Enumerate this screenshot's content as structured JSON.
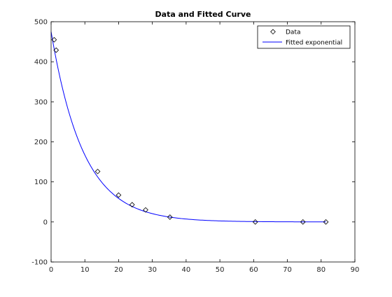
{
  "chart_data": {
    "type": "scatter",
    "title": "Data and Fitted Curve",
    "xlabel": "",
    "ylabel": "",
    "xlim": [
      0,
      90
    ],
    "ylim": [
      -100,
      500
    ],
    "x_ticks": [
      0,
      10,
      20,
      30,
      40,
      50,
      60,
      70,
      80,
      90
    ],
    "y_ticks": [
      -100,
      0,
      100,
      200,
      300,
      400,
      500
    ],
    "grid": false,
    "legend_position": "top-right",
    "series": [
      {
        "name": "Data",
        "kind": "markers",
        "marker": "diamond",
        "color": "#000000",
        "x": [
          0.9,
          1.5,
          13.8,
          20.0,
          24.0,
          28.0,
          35.2,
          60.5,
          74.6,
          81.4
        ],
        "y": [
          455,
          429,
          126,
          67,
          43,
          30,
          12,
          0,
          0,
          0
        ]
      },
      {
        "name": "Fitted exponential",
        "kind": "line",
        "color": "#0000ff",
        "model": {
          "form": "y = a*exp(-b*x)",
          "a": 475,
          "b": 0.1045
        },
        "x_range": [
          0,
          81.4
        ]
      }
    ]
  }
}
